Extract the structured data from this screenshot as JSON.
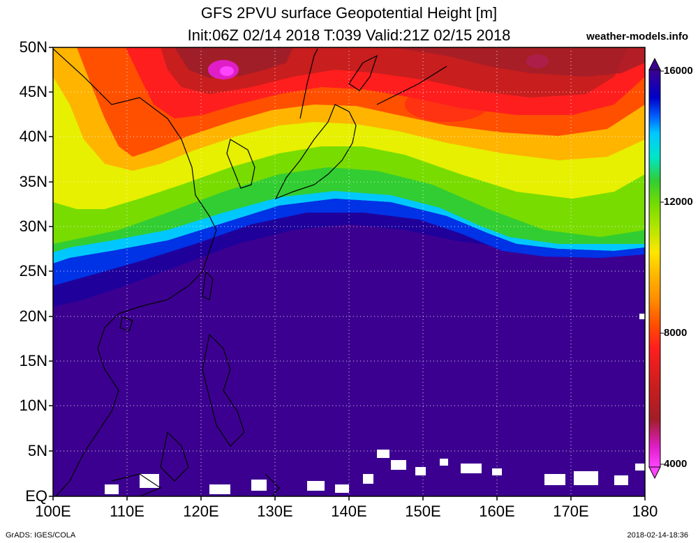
{
  "title": {
    "line1": "GFS 2PVU surface Geopotential Height [m]",
    "line2": "Init:06Z 02/14 2018 T:039 Valid:21Z 02/15 2018"
  },
  "site": "weather-models.info",
  "lat_labels": [
    "50N",
    "45N",
    "40N",
    "35N",
    "30N",
    "25N",
    "20N",
    "15N",
    "10N",
    "5N",
    "EQ"
  ],
  "lon_labels": [
    "100E",
    "110E",
    "120E",
    "130E",
    "140E",
    "150E",
    "160E",
    "170E",
    "180"
  ],
  "colorbar": {
    "labels": [
      "16000",
      "12000",
      "8000",
      "4000"
    ],
    "colors": [
      "#ff44ff",
      "#e01ec8",
      "#a01e28",
      "#c81e1e",
      "#ff1e1e",
      "#ff5000",
      "#ff8c00",
      "#ffb400",
      "#ffe600",
      "#e6f000",
      "#b4e600",
      "#78dc00",
      "#32cd32",
      "#00d278",
      "#00e6c8",
      "#00c8ff",
      "#0096ff",
      "#0064ff",
      "#0032e6",
      "#0000c8",
      "#20009a",
      "#3c0090"
    ]
  },
  "footer": {
    "left": "GrADS: IGES/COLA",
    "right": "2018-02-14-18:36"
  }
}
